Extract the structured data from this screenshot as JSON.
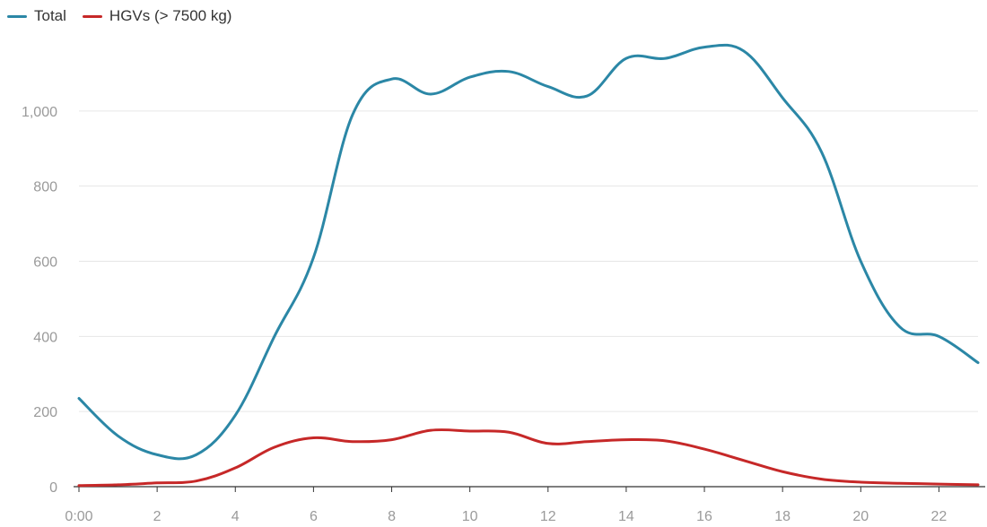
{
  "chart_data": {
    "type": "line",
    "title": "",
    "xlabel": "",
    "ylabel": "",
    "x": [
      0,
      1,
      2,
      3,
      4,
      5,
      6,
      7,
      8,
      9,
      10,
      11,
      12,
      13,
      14,
      15,
      16,
      17,
      18,
      19,
      20,
      21,
      22,
      23
    ],
    "x_tick_values": [
      0,
      2,
      4,
      6,
      8,
      10,
      12,
      14,
      16,
      18,
      20,
      22
    ],
    "x_tick_labels": [
      "0:00",
      "2",
      "4",
      "6",
      "8",
      "10",
      "12",
      "14",
      "16",
      "18",
      "20",
      "22"
    ],
    "y_tick_values": [
      0,
      200,
      400,
      600,
      800,
      1000
    ],
    "y_tick_labels": [
      "0",
      "200",
      "400",
      "600",
      "800",
      "1,000"
    ],
    "xlim": [
      0,
      23
    ],
    "ylim": [
      0,
      1200
    ],
    "grid": true,
    "legend_position": "top-left",
    "series": [
      {
        "name": "Total",
        "color": "#2b87a6",
        "values": [
          235,
          135,
          85,
          85,
          190,
          400,
          610,
          990,
          1085,
          1045,
          1090,
          1105,
          1065,
          1040,
          1140,
          1140,
          1170,
          1160,
          1035,
          890,
          600,
          425,
          400,
          330
        ]
      },
      {
        "name": "HGVs (> 7500 kg)",
        "color": "#c62828",
        "values": [
          3,
          5,
          10,
          15,
          50,
          105,
          130,
          120,
          125,
          150,
          148,
          145,
          115,
          120,
          125,
          122,
          100,
          70,
          40,
          20,
          12,
          9,
          7,
          5
        ]
      }
    ]
  }
}
